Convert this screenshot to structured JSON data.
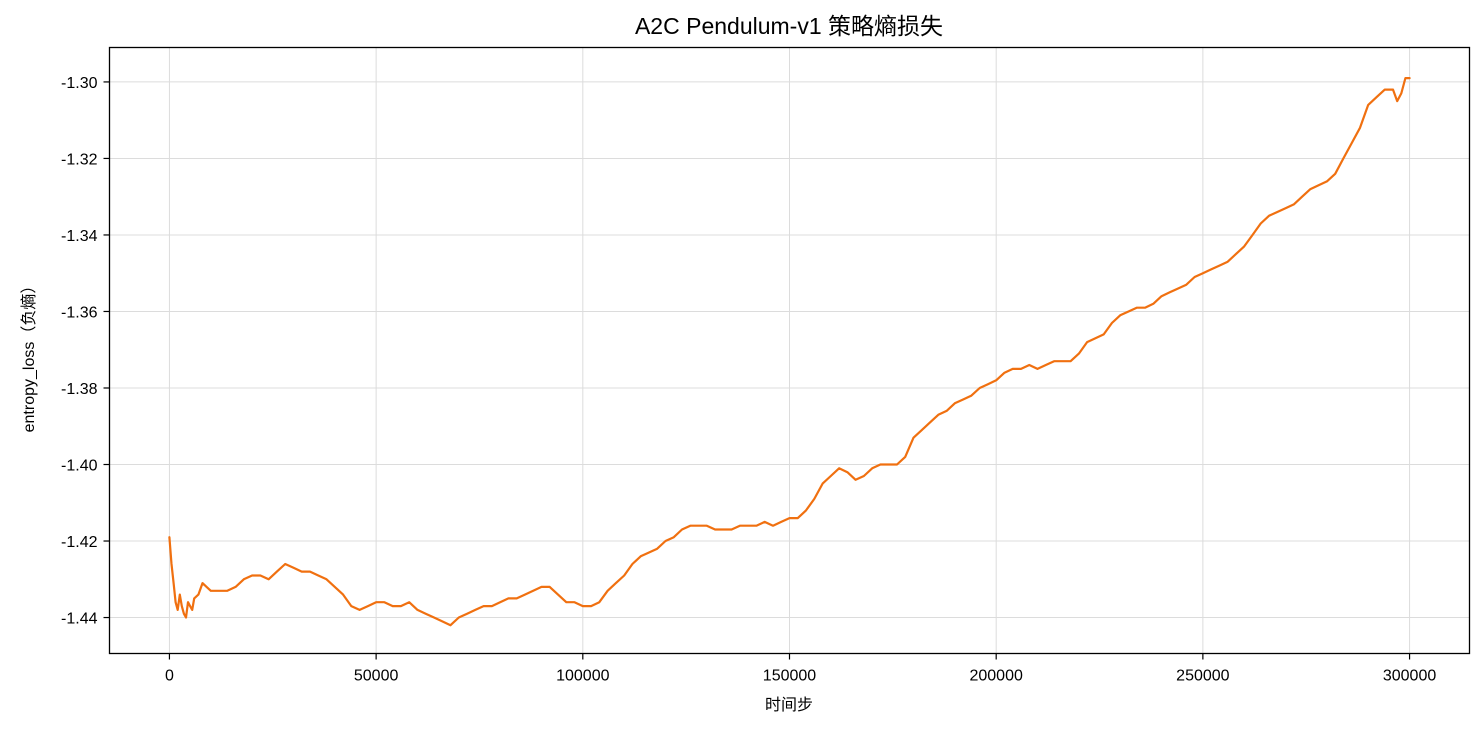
{
  "chart_data": {
    "type": "line",
    "title": "A2C Pendulum-v1 策略熵损失",
    "xlabel": "时间步",
    "ylabel": "entropy_loss（负熵）",
    "xlim": [
      -14500,
      314500
    ],
    "ylim": [
      -1.4494,
      -1.291
    ],
    "xticks": [
      0,
      50000,
      100000,
      150000,
      200000,
      250000,
      300000
    ],
    "xtick_labels": [
      "0",
      "50000",
      "100000",
      "150000",
      "200000",
      "250000",
      "300000"
    ],
    "yticks": [
      -1.44,
      -1.42,
      -1.4,
      -1.38,
      -1.36,
      -1.34,
      -1.32,
      -1.3
    ],
    "ytick_labels": [
      "-1.44",
      "-1.42",
      "-1.40",
      "-1.38",
      "-1.36",
      "-1.34",
      "-1.32",
      "-1.30"
    ],
    "grid": true,
    "legend": "none",
    "series": [
      {
        "color": "#f07010",
        "x": [
          0,
          500,
          1000,
          1500,
          2000,
          2500,
          3000,
          3500,
          4000,
          4500,
          5000,
          5500,
          6000,
          7000,
          8000,
          9000,
          10000,
          12000,
          14000,
          16000,
          18000,
          20000,
          22000,
          24000,
          26000,
          28000,
          30000,
          32000,
          34000,
          36000,
          38000,
          40000,
          42000,
          44000,
          46000,
          48000,
          50000,
          52000,
          54000,
          56000,
          58000,
          60000,
          62000,
          64000,
          66000,
          68000,
          70000,
          72000,
          74000,
          76000,
          78000,
          80000,
          82000,
          84000,
          86000,
          88000,
          90000,
          92000,
          94000,
          96000,
          98000,
          100000,
          102000,
          104000,
          106000,
          108000,
          110000,
          112000,
          114000,
          116000,
          118000,
          120000,
          122000,
          124000,
          126000,
          128000,
          130000,
          132000,
          134000,
          136000,
          138000,
          140000,
          142000,
          144000,
          146000,
          148000,
          150000,
          152000,
          154000,
          156000,
          158000,
          160000,
          162000,
          164000,
          166000,
          168000,
          170000,
          172000,
          174000,
          176000,
          178000,
          180000,
          182000,
          184000,
          186000,
          188000,
          190000,
          192000,
          194000,
          196000,
          198000,
          200000,
          202000,
          204000,
          206000,
          208000,
          210000,
          212000,
          214000,
          216000,
          218000,
          220000,
          222000,
          224000,
          226000,
          228000,
          230000,
          232000,
          234000,
          236000,
          238000,
          240000,
          242000,
          244000,
          246000,
          248000,
          250000,
          252000,
          254000,
          256000,
          258000,
          260000,
          262000,
          264000,
          266000,
          268000,
          270000,
          272000,
          274000,
          276000,
          278000,
          280000,
          282000,
          284000,
          286000,
          288000,
          290000,
          292000,
          294000,
          296000,
          297000,
          298000,
          299000,
          300000
        ],
        "y": [
          -1.419,
          -1.426,
          -1.431,
          -1.436,
          -1.438,
          -1.434,
          -1.437,
          -1.439,
          -1.44,
          -1.436,
          -1.437,
          -1.438,
          -1.435,
          -1.434,
          -1.431,
          -1.432,
          -1.433,
          -1.433,
          -1.433,
          -1.432,
          -1.43,
          -1.429,
          -1.429,
          -1.43,
          -1.428,
          -1.426,
          -1.427,
          -1.428,
          -1.428,
          -1.429,
          -1.43,
          -1.432,
          -1.434,
          -1.437,
          -1.438,
          -1.437,
          -1.436,
          -1.436,
          -1.437,
          -1.437,
          -1.436,
          -1.438,
          -1.439,
          -1.44,
          -1.441,
          -1.442,
          -1.44,
          -1.439,
          -1.438,
          -1.437,
          -1.437,
          -1.436,
          -1.435,
          -1.435,
          -1.434,
          -1.433,
          -1.432,
          -1.432,
          -1.434,
          -1.436,
          -1.436,
          -1.437,
          -1.437,
          -1.436,
          -1.433,
          -1.431,
          -1.429,
          -1.426,
          -1.424,
          -1.423,
          -1.422,
          -1.42,
          -1.419,
          -1.417,
          -1.416,
          -1.416,
          -1.416,
          -1.417,
          -1.417,
          -1.417,
          -1.416,
          -1.416,
          -1.416,
          -1.415,
          -1.416,
          -1.415,
          -1.414,
          -1.414,
          -1.412,
          -1.409,
          -1.405,
          -1.403,
          -1.401,
          -1.402,
          -1.404,
          -1.403,
          -1.401,
          -1.4,
          -1.4,
          -1.4,
          -1.398,
          -1.393,
          -1.391,
          -1.389,
          -1.387,
          -1.386,
          -1.384,
          -1.383,
          -1.382,
          -1.38,
          -1.379,
          -1.378,
          -1.376,
          -1.375,
          -1.375,
          -1.374,
          -1.375,
          -1.374,
          -1.373,
          -1.373,
          -1.373,
          -1.371,
          -1.368,
          -1.367,
          -1.366,
          -1.363,
          -1.361,
          -1.36,
          -1.359,
          -1.359,
          -1.358,
          -1.356,
          -1.355,
          -1.354,
          -1.353,
          -1.351,
          -1.35,
          -1.349,
          -1.348,
          -1.347,
          -1.345,
          -1.343,
          -1.34,
          -1.337,
          -1.335,
          -1.334,
          -1.333,
          -1.332,
          -1.33,
          -1.328,
          -1.327,
          -1.326,
          -1.324,
          -1.32,
          -1.316,
          -1.312,
          -1.306,
          -1.304,
          -1.302,
          -1.302,
          -1.305,
          -1.303,
          -1.299,
          -1.299
        ]
      }
    ]
  }
}
